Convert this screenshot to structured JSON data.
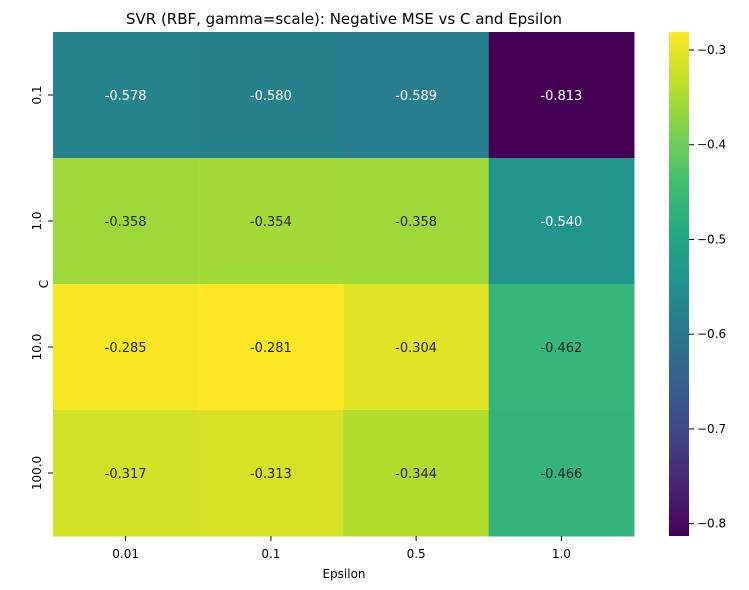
{
  "chart_data": {
    "type": "heatmap",
    "title": "SVR (RBF, gamma=scale): Negative MSE vs C and Epsilon",
    "xlabel": "Epsilon",
    "ylabel": "C",
    "x_categories": [
      "0.01",
      "0.1",
      "0.5",
      "1.0"
    ],
    "y_categories": [
      "0.1",
      "1.0",
      "10.0",
      "100.0"
    ],
    "values": [
      [
        -0.578,
        -0.58,
        -0.589,
        -0.813
      ],
      [
        -0.358,
        -0.354,
        -0.358,
        -0.54
      ],
      [
        -0.285,
        -0.281,
        -0.304,
        -0.462
      ],
      [
        -0.317,
        -0.313,
        -0.344,
        -0.466
      ]
    ],
    "value_labels": [
      [
        "-0.578",
        "-0.580",
        "-0.589",
        "-0.813"
      ],
      [
        "-0.358",
        "-0.354",
        "-0.358",
        "-0.540"
      ],
      [
        "-0.285",
        "-0.281",
        "-0.304",
        "-0.462"
      ],
      [
        "-0.317",
        "-0.313",
        "-0.344",
        "-0.466"
      ]
    ],
    "colormap": "viridis",
    "color_range": [
      -0.813,
      -0.281
    ],
    "colorbar": {
      "ticks": [
        -0.3,
        -0.4,
        -0.5,
        -0.6,
        -0.7,
        -0.8
      ],
      "tick_labels": [
        "−0.3",
        "−0.4",
        "−0.5",
        "−0.6",
        "−0.7",
        "−0.8"
      ],
      "placement": "right"
    },
    "grid": false
  }
}
